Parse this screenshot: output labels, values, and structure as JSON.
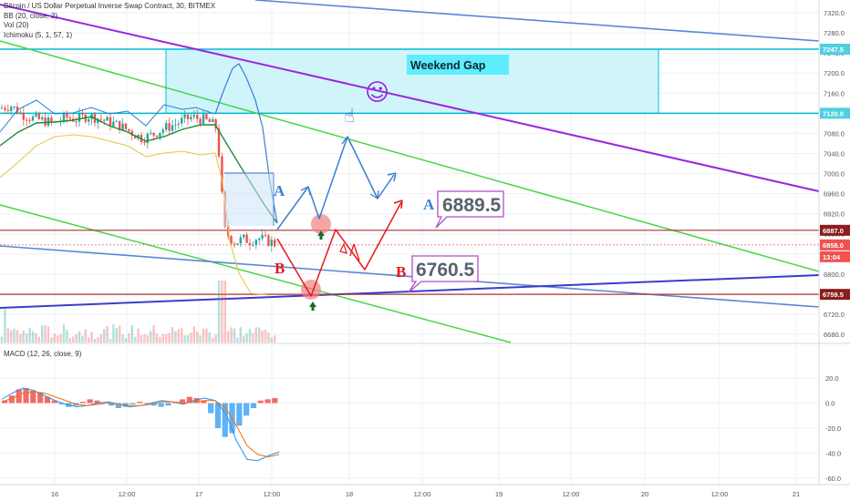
{
  "legend": {
    "title": "Bitcoin / US Dollar Perpetual Inverse Swap Contract, 30, BITMEX",
    "bb": "BB (20, close, 2)",
    "vol": "Vol (20)",
    "ichimoku": "Ichimoku (5, 1, 57, 1)",
    "macd": "MACD (12, 26, close, 9)"
  },
  "annotations": {
    "weekend_gap": "Weekend Gap",
    "label_a": "6889.5",
    "label_b": "6760.5",
    "letter_a": "A",
    "letter_b": "B",
    "smiley": "☺",
    "hand": "☝"
  },
  "badges": {
    "gap_top": "7247.5",
    "gap_bottom": "7120.0",
    "level_a": "6887.0",
    "last_price": "6858.0",
    "countdown": "13:04",
    "level_b": "6759.5"
  },
  "colors": {
    "bull": "#26a69a",
    "bear": "#ef5350",
    "gap_fill": "#cff5fb",
    "gap_border": "#00bcd4",
    "purple": "#9c27e0",
    "green_channel": "#44d644",
    "blue_trend": "#5b87d6",
    "navy_line": "#3c3cc8",
    "level_line": "#a33",
    "arrow_red": "#e8161c",
    "arrow_blue": "#3b7fd0",
    "box_border": "#b04ec8"
  },
  "chart_data": [
    {
      "type": "candlestick",
      "title": "Bitcoin / US Dollar Perpetual Inverse Swap Contract, 30, BITMEX",
      "y_ticks": [
        7320.0,
        7280.0,
        7240.0,
        7200.0,
        7160.0,
        7120.0,
        7080.0,
        7040.0,
        7000.0,
        6960.0,
        6920.0,
        6880.0,
        6840.0,
        6800.0,
        6760.0,
        6720.0,
        6680.0
      ],
      "x_ticks": [
        "16",
        "12:00",
        "17",
        "12:00",
        "18",
        "12:00",
        "19",
        "12:00",
        "20",
        "12:00",
        "21"
      ],
      "ylim": [
        6668,
        7340
      ],
      "price_path": [
        [
          0,
          7130
        ],
        [
          12,
          7135
        ],
        [
          24,
          7118
        ],
        [
          36,
          7110
        ],
        [
          48,
          7105
        ],
        [
          60,
          7100
        ],
        [
          72,
          7112
        ],
        [
          84,
          7108
        ],
        [
          96,
          7115
        ],
        [
          108,
          7110
        ],
        [
          120,
          7102
        ],
        [
          132,
          7095
        ],
        [
          144,
          7082
        ],
        [
          156,
          7070
        ],
        [
          168,
          7078
        ],
        [
          180,
          7090
        ],
        [
          192,
          7098
        ],
        [
          200,
          7105
        ],
        [
          210,
          7112
        ],
        [
          222,
          7108
        ],
        [
          232,
          7100
        ],
        [
          238,
          7090
        ],
        [
          242,
          6990
        ],
        [
          246,
          6890
        ],
        [
          252,
          6872
        ],
        [
          258,
          6862
        ],
        [
          266,
          6870
        ],
        [
          274,
          6866
        ],
        [
          282,
          6872
        ],
        [
          290,
          6868
        ],
        [
          298,
          6863
        ],
        [
          304,
          6858
        ]
      ],
      "levels": [
        {
          "price": 7247.5,
          "label": "7247.5"
        },
        {
          "price": 7120.0,
          "label": "7120.0"
        },
        {
          "price": 6887.0,
          "label": "6887.0"
        },
        {
          "price": 6858.0,
          "label": "6858.0"
        },
        {
          "price": 6759.5,
          "label": "6759.5"
        }
      ],
      "projection_a": [
        6858,
        6930,
        6887,
        7080,
        6955,
        6995
      ],
      "projection_b": [
        6858,
        6760,
        6880,
        6810,
        6930
      ],
      "annotations": [
        "Weekend Gap",
        "A 6889.5",
        "B 6760.5"
      ]
    },
    {
      "type": "bar",
      "title": "MACD (12, 26, close, 9)",
      "y_ticks": [
        20.0,
        0.0,
        -20.0,
        -40.0,
        -60.0
      ],
      "ylim": [
        -63,
        25
      ],
      "histogram": [
        2,
        6,
        11,
        12,
        10,
        8,
        5,
        2,
        -1,
        -3,
        -2,
        1,
        3,
        2,
        0,
        -2,
        -4,
        -3,
        -1,
        1,
        0,
        -2,
        -3,
        -2,
        1,
        3,
        5,
        4,
        2,
        -8,
        -20,
        -27,
        -24,
        -18,
        -10,
        -4,
        2,
        3,
        4
      ],
      "macd_line": [
        3,
        8,
        12,
        10,
        6,
        2,
        -1,
        -3,
        -2,
        0,
        1,
        -1,
        -3,
        -2,
        0,
        2,
        1,
        -1,
        2,
        4,
        2,
        -8,
        -30,
        -45,
        -46,
        -42,
        -39
      ],
      "signal_line": [
        1,
        4,
        8,
        9,
        8,
        5,
        2,
        -1,
        -2,
        -1,
        0,
        -1,
        -2,
        -2,
        -1,
        1,
        1,
        0,
        1,
        2,
        2,
        -4,
        -18,
        -34,
        -41,
        -43,
        -41
      ]
    }
  ]
}
